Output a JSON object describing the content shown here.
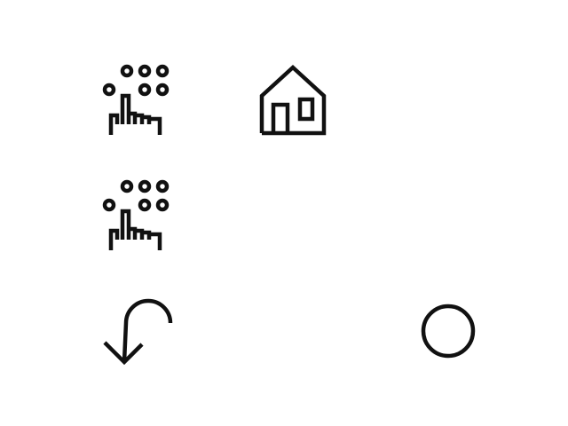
{
  "icons": [
    {
      "id": "keypad-1",
      "name": "dialpad-touch-icon"
    },
    {
      "id": "home",
      "name": "home-icon"
    },
    {
      "id": "keypad-2",
      "name": "dialpad-touch-icon"
    },
    {
      "id": "back",
      "name": "back-return-icon"
    },
    {
      "id": "circle",
      "name": "circle-icon"
    }
  ],
  "colors": {
    "background": "#ffffff",
    "icon_stroke": "#111111"
  }
}
